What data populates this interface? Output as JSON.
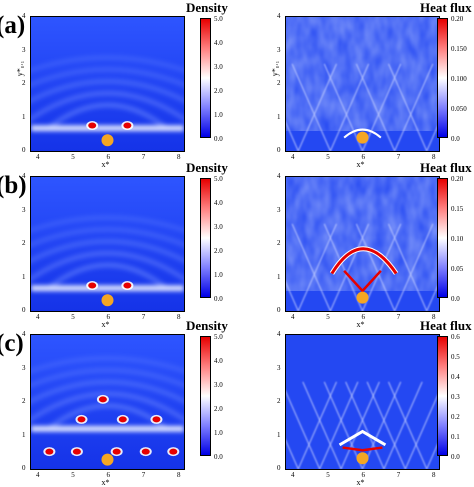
{
  "panels": [
    {
      "letter": "(a)",
      "left": {
        "title": "Density",
        "cb_ticks": [
          "5.0",
          "4.0",
          "3.0",
          "2.0",
          "1.0",
          "0.0"
        ],
        "y_label": "y*₀.₁"
      },
      "right": {
        "title": "Heat flux",
        "cb_ticks": [
          "0.20",
          "0.150",
          "0.100",
          "0.050",
          "0.0"
        ]
      },
      "x_label": "x*"
    },
    {
      "letter": "(b)",
      "left": {
        "title": "Density",
        "cb_ticks": [
          "5.0",
          "4.0",
          "3.0",
          "2.0",
          "1.0",
          "0.0"
        ]
      },
      "right": {
        "title": "Heat flux",
        "cb_ticks": [
          "0.20",
          "0.15",
          "0.10",
          "0.05",
          "0.0"
        ]
      },
      "x_label": "x*"
    },
    {
      "letter": "(c)",
      "left": {
        "title": "Density",
        "cb_ticks": [
          "5.0",
          "4.0",
          "3.0",
          "2.0",
          "1.0",
          "0.0"
        ]
      },
      "right": {
        "title": "Heat flux",
        "cb_ticks": [
          "0.6",
          "0.5",
          "0.4",
          "0.3",
          "0.2",
          "0.1",
          "0.0"
        ]
      },
      "x_label": "x*"
    }
  ],
  "axes": {
    "x_ticks": [
      "4",
      "5",
      "6",
      "7",
      "8"
    ],
    "y_ticks": [
      "4",
      "3",
      "2",
      "1",
      "0"
    ]
  },
  "colors": {
    "background": "#1a3cf0",
    "high": "#e60000",
    "mid": "#ffffff",
    "obstacle": "#f5a623"
  }
}
